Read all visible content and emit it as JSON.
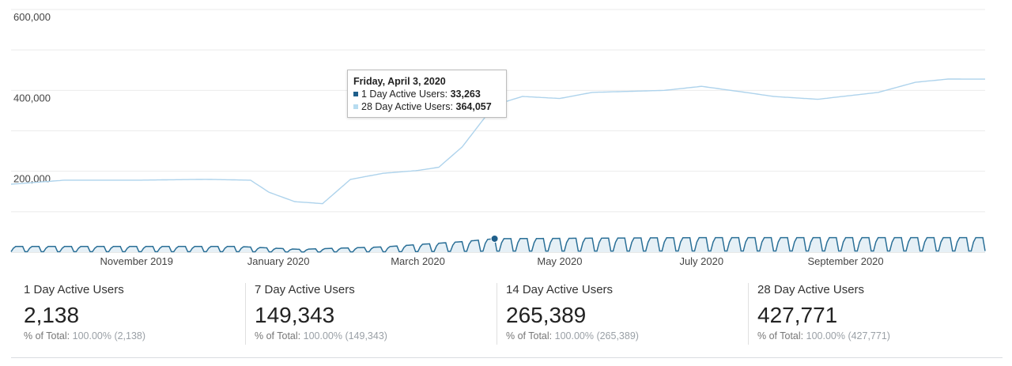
{
  "chart_data": {
    "type": "line",
    "yticks": [
      "600,000",
      "400,000",
      "200,000"
    ],
    "ytick_values": [
      600000,
      400000,
      200000
    ],
    "ylim": [
      0,
      600000
    ],
    "xticks": [
      {
        "label": "November 2019",
        "date": "2019-11-01"
      },
      {
        "label": "January 2020",
        "date": "2020-01-01"
      },
      {
        "label": "March 2020",
        "date": "2020-03-01"
      },
      {
        "label": "May 2020",
        "date": "2020-05-01"
      },
      {
        "label": "July 2020",
        "date": "2020-07-01"
      },
      {
        "label": "September 2020",
        "date": "2020-09-01"
      }
    ],
    "x_start": "2019-09-08",
    "x_end": "2020-10-31",
    "grid": true,
    "series": [
      {
        "name": "28 Day Active Users",
        "color": "#aed3ec",
        "points": [
          [
            "2019-09-08",
            168000
          ],
          [
            "2019-10-01",
            178000
          ],
          [
            "2019-11-01",
            178000
          ],
          [
            "2019-12-01",
            180000
          ],
          [
            "2019-12-20",
            178000
          ],
          [
            "2019-12-28",
            148000
          ],
          [
            "2020-01-08",
            125000
          ],
          [
            "2020-01-20",
            120000
          ],
          [
            "2020-02-01",
            180000
          ],
          [
            "2020-02-15",
            195000
          ],
          [
            "2020-03-01",
            202000
          ],
          [
            "2020-03-10",
            210000
          ],
          [
            "2020-03-20",
            260000
          ],
          [
            "2020-04-03",
            364057
          ],
          [
            "2020-04-15",
            385000
          ],
          [
            "2020-05-01",
            380000
          ],
          [
            "2020-05-15",
            395000
          ],
          [
            "2020-06-15",
            400000
          ],
          [
            "2020-07-01",
            410000
          ],
          [
            "2020-07-20",
            395000
          ],
          [
            "2020-08-01",
            385000
          ],
          [
            "2020-08-20",
            378000
          ],
          [
            "2020-09-15",
            395000
          ],
          [
            "2020-10-01",
            420000
          ],
          [
            "2020-10-15",
            428000
          ],
          [
            "2020-10-31",
            427771
          ]
        ]
      },
      {
        "name": "1 Day Active Users",
        "color": "#2a6f97",
        "weekly_pattern": true,
        "points": [
          [
            "2019-09-08",
            14000
          ],
          [
            "2019-12-15",
            14000
          ],
          [
            "2020-01-10",
            7000
          ],
          [
            "2020-02-15",
            13000
          ],
          [
            "2020-03-20",
            26000
          ],
          [
            "2020-04-03",
            33263
          ],
          [
            "2020-07-01",
            36000
          ],
          [
            "2020-10-31",
            36000
          ]
        ]
      }
    ],
    "tooltip": {
      "date": "Friday, April 3, 2020",
      "rows": [
        {
          "label": "1 Day Active Users:",
          "value": "33,263",
          "color": "#1f5f8b"
        },
        {
          "label": "28 Day Active Users:",
          "value": "364,057",
          "color": "#b7dcf0"
        }
      ]
    }
  },
  "metrics": [
    {
      "label": "1 Day Active Users",
      "value": "2,138",
      "pct_prefix": "% of Total:",
      "pct": "100.00% (2,138)"
    },
    {
      "label": "7 Day Active Users",
      "value": "149,343",
      "pct_prefix": "% of Total:",
      "pct": "100.00% (149,343)"
    },
    {
      "label": "14 Day Active Users",
      "value": "265,389",
      "pct_prefix": "% of Total:",
      "pct": "100.00% (265,389)"
    },
    {
      "label": "28 Day Active Users",
      "value": "427,771",
      "pct_prefix": "% of Total:",
      "pct": "100.00% (427,771)"
    }
  ]
}
